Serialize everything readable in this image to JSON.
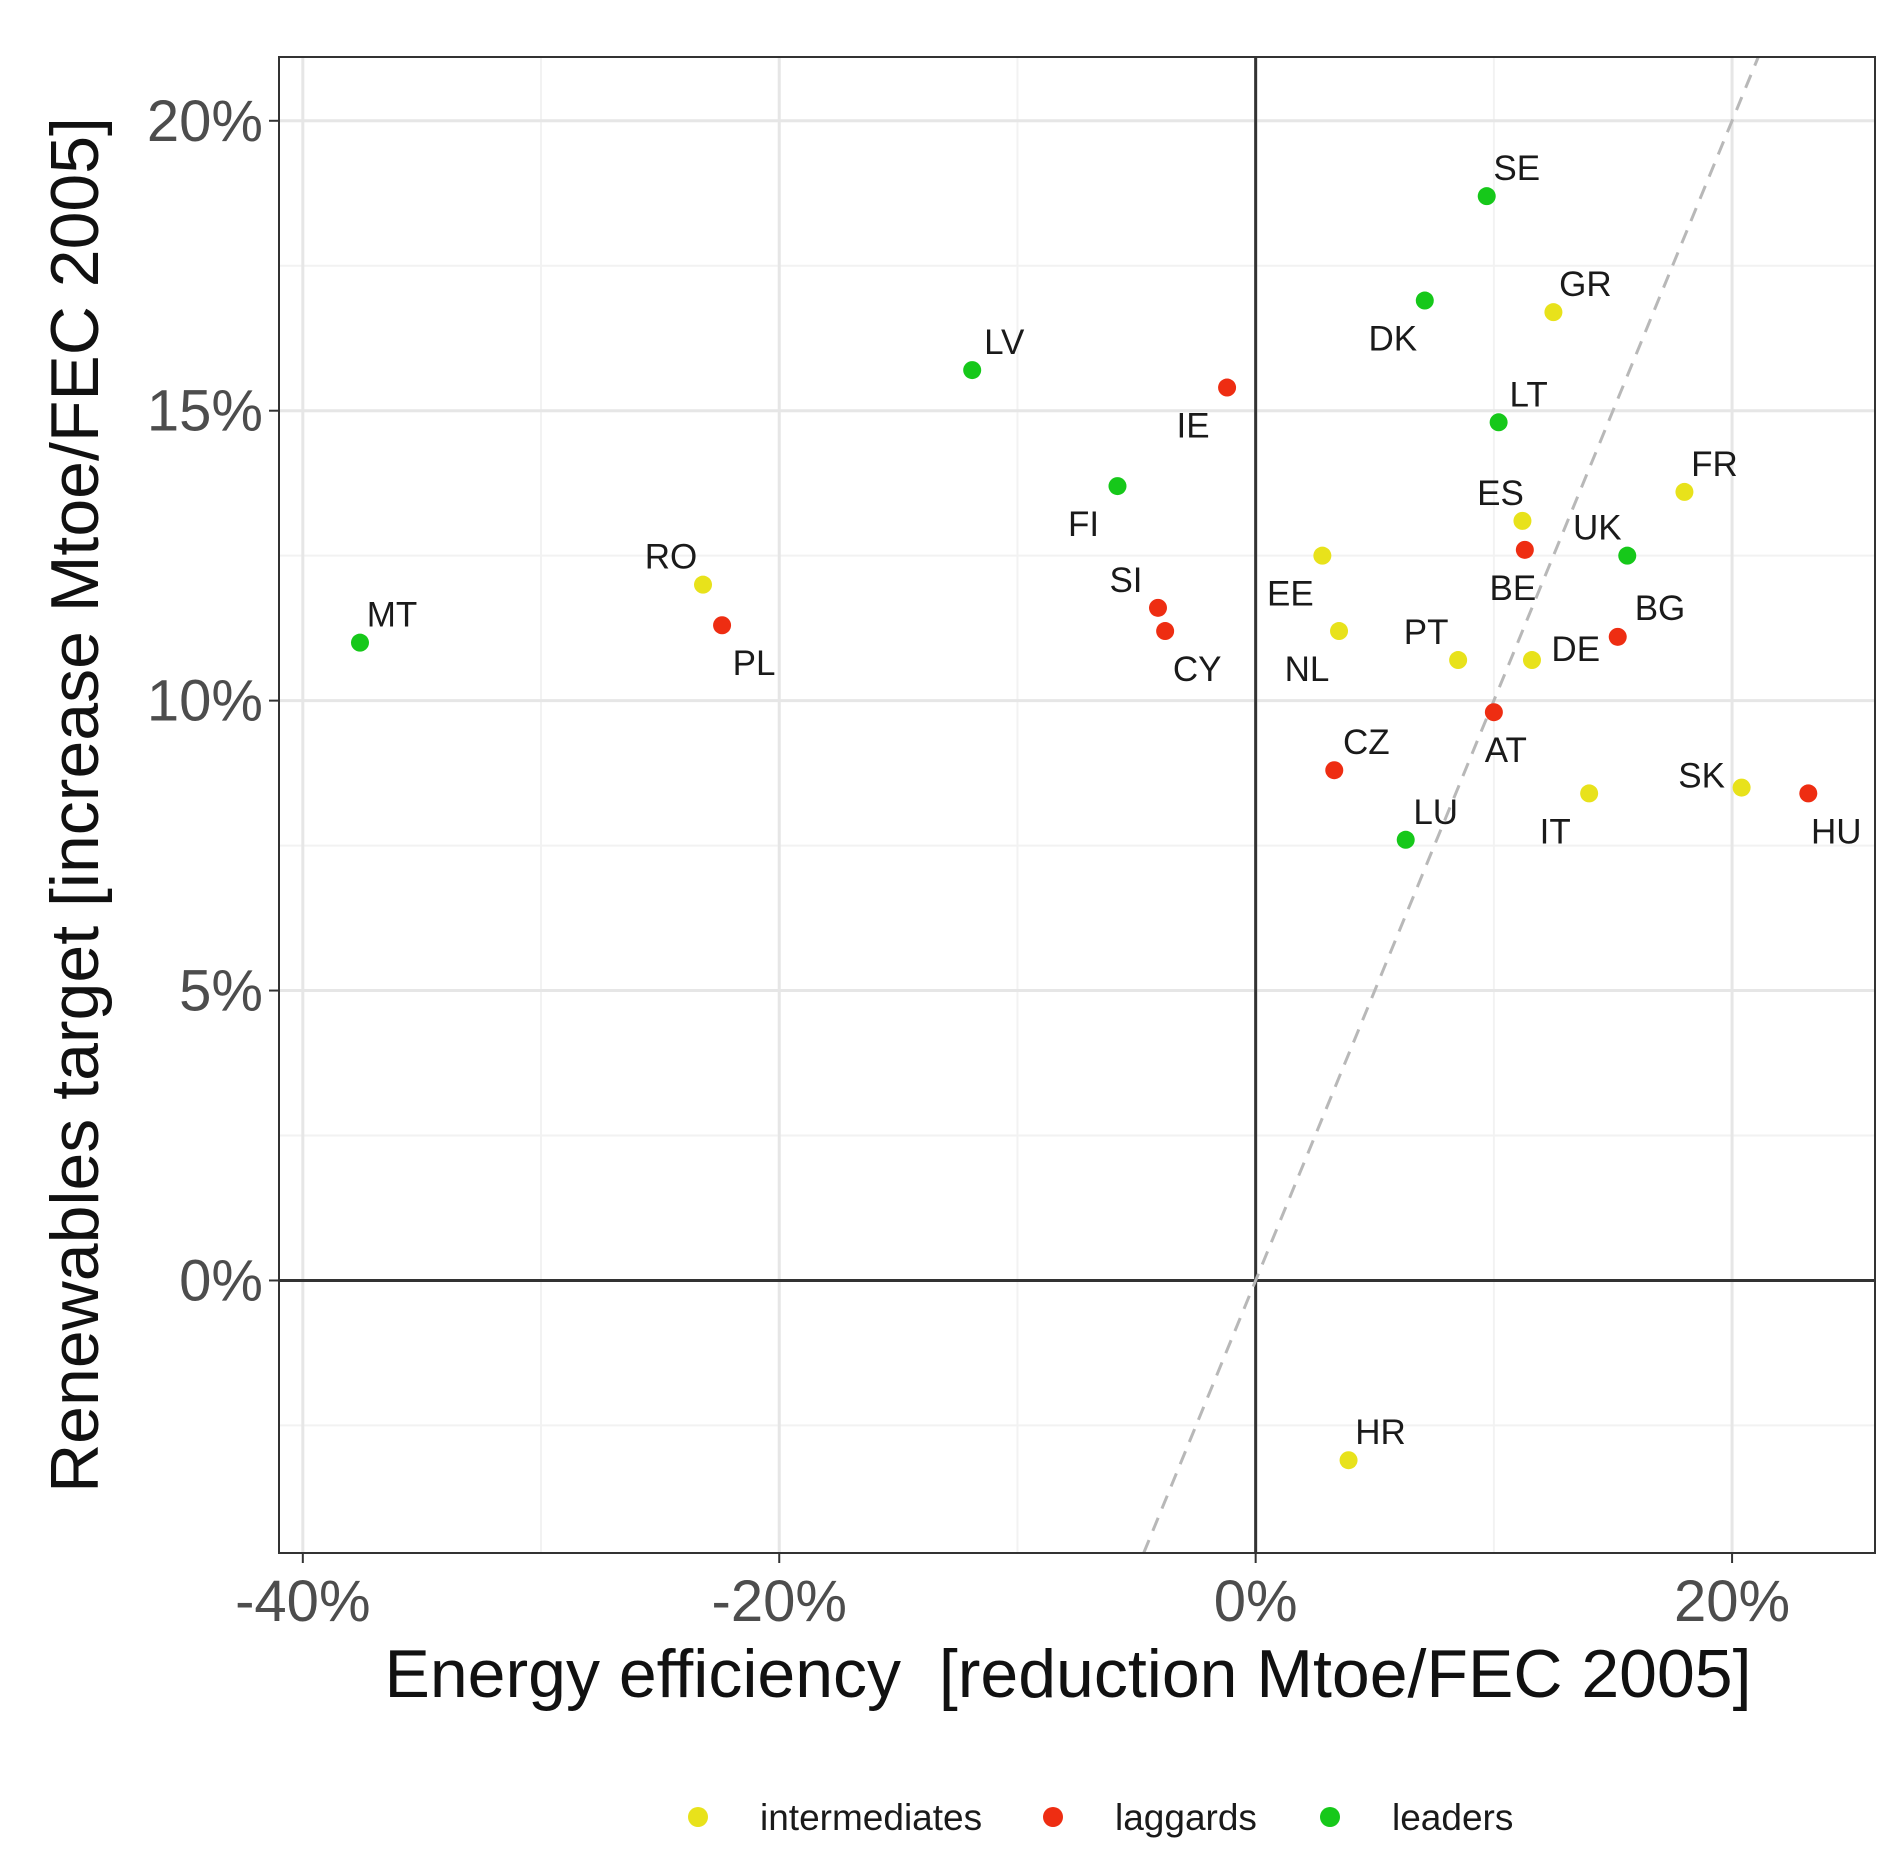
{
  "chart_data": {
    "type": "scatter",
    "title": "",
    "xlabel": "Energy efficiency  [reduction Mtoe/FEC 2005]",
    "ylabel": "Renewables target [increase Mtoe/FEC 2005]",
    "xlim": [
      -41,
      26
    ],
    "ylim": [
      -4.7,
      21.1
    ],
    "x_ticks": [
      -40,
      -20,
      0,
      20
    ],
    "x_tick_labels": [
      "-40%",
      "-20%",
      "0%",
      "20%"
    ],
    "y_ticks": [
      0,
      5,
      10,
      15,
      20
    ],
    "y_tick_labels": [
      "0%",
      "5%",
      "10%",
      "15%",
      "20%"
    ],
    "grid": true,
    "reference_lines": [
      "x = 0",
      "y = 0"
    ],
    "trend_line": {
      "style": "dashed",
      "slope": 1.0,
      "intercept": 0
    },
    "legend": {
      "position": "bottom",
      "entries": [
        {
          "name": "intermediates",
          "color": "#e8e21b"
        },
        {
          "name": "laggards",
          "color": "#ee2d12"
        },
        {
          "name": "leaders",
          "color": "#16c81a"
        }
      ]
    },
    "points": [
      {
        "label": "SE",
        "x": 9.7,
        "y": 18.7,
        "group": "leaders"
      },
      {
        "label": "GR",
        "x": 12.5,
        "y": 16.7,
        "group": "intermediates"
      },
      {
        "label": "DK",
        "x": 7.1,
        "y": 16.9,
        "group": "leaders"
      },
      {
        "label": "LV",
        "x": -11.9,
        "y": 15.7,
        "group": "leaders"
      },
      {
        "label": "IE",
        "x": -1.2,
        "y": 15.4,
        "group": "laggards"
      },
      {
        "label": "LT",
        "x": 10.2,
        "y": 14.8,
        "group": "leaders"
      },
      {
        "label": "FR",
        "x": 18.0,
        "y": 13.6,
        "group": "intermediates"
      },
      {
        "label": "FI",
        "x": -5.8,
        "y": 13.7,
        "group": "leaders"
      },
      {
        "label": "ES",
        "x": 11.2,
        "y": 13.1,
        "group": "intermediates"
      },
      {
        "label": "UK",
        "x": 15.6,
        "y": 12.5,
        "group": "leaders"
      },
      {
        "label": "BE",
        "x": 11.3,
        "y": 12.6,
        "group": "laggards"
      },
      {
        "label": "EE",
        "x": 2.8,
        "y": 12.5,
        "group": "intermediates"
      },
      {
        "label": "RO",
        "x": -23.2,
        "y": 12.0,
        "group": "intermediates"
      },
      {
        "label": "SI",
        "x": -4.1,
        "y": 11.6,
        "group": "laggards"
      },
      {
        "label": "PL",
        "x": -22.4,
        "y": 11.3,
        "group": "laggards"
      },
      {
        "label": "MT",
        "x": -37.6,
        "y": 11.0,
        "group": "leaders"
      },
      {
        "label": "CY",
        "x": -3.8,
        "y": 11.2,
        "group": "laggards"
      },
      {
        "label": "NL",
        "x": 3.5,
        "y": 11.2,
        "group": "intermediates"
      },
      {
        "label": "DE",
        "x": 15.2,
        "y": 11.1,
        "group": "laggards"
      },
      {
        "label": "PT",
        "x": 8.5,
        "y": 10.7,
        "group": "intermediates"
      },
      {
        "label": "BG",
        "x": 11.6,
        "y": 10.7,
        "group": "intermediates"
      },
      {
        "label": "AT",
        "x": 10.0,
        "y": 9.8,
        "group": "laggards"
      },
      {
        "label": "CZ",
        "x": 3.3,
        "y": 8.8,
        "group": "laggards"
      },
      {
        "label": "SK",
        "x": 20.4,
        "y": 8.5,
        "group": "intermediates"
      },
      {
        "label": "HU",
        "x": 23.2,
        "y": 8.4,
        "group": "laggards"
      },
      {
        "label": "IT",
        "x": 14.0,
        "y": 8.4,
        "group": "intermediates"
      },
      {
        "label": "LU",
        "x": 6.3,
        "y": 7.6,
        "group": "leaders"
      },
      {
        "label": "HR",
        "x": 3.9,
        "y": -3.1,
        "group": "intermediates"
      }
    ]
  }
}
